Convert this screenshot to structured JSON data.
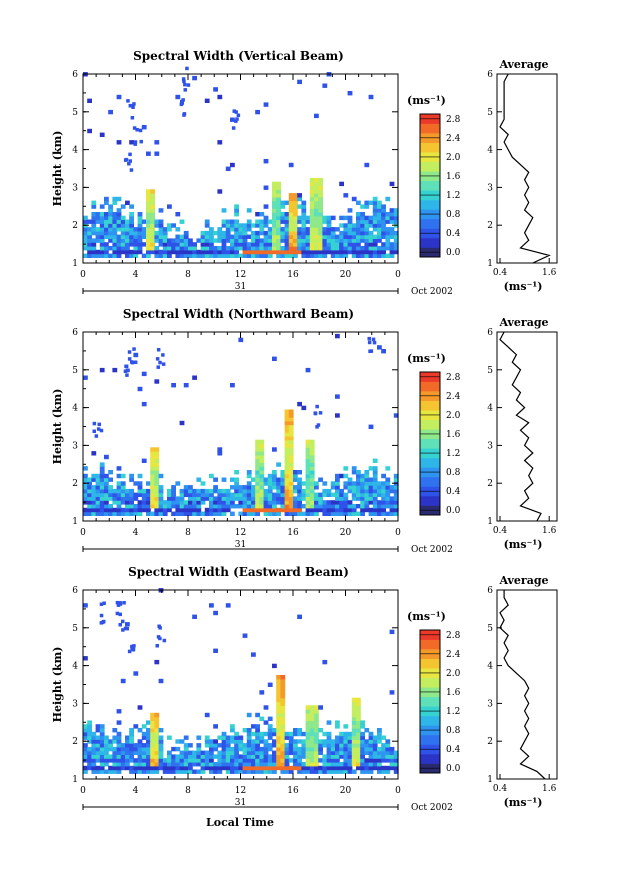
{
  "figure": {
    "date_label": "Oct 2002",
    "day_label": "31",
    "xlabel": "Local Time"
  },
  "colorbar": {
    "unit": "(ms⁻¹)",
    "ticks": [
      "0.0",
      "0.4",
      "0.8",
      "1.2",
      "1.6",
      "2.0",
      "2.4",
      "2.8"
    ],
    "colors": [
      "#2a2a6e",
      "#2c34c8",
      "#2f52e8",
      "#2f72f0",
      "#2e94f0",
      "#2fb6e8",
      "#36d2d2",
      "#5ee0b8",
      "#8fe88a",
      "#c2ee60",
      "#e8e640",
      "#f4c530",
      "#f49a2a",
      "#f26a28",
      "#ec3a2a"
    ]
  },
  "chart_data": [
    {
      "type": "heatmap",
      "title": "Spectral Width (Vertical Beam)",
      "xlabel": "",
      "ylabel": "Height (km)",
      "x_ticks": [
        "0",
        "4",
        "8",
        "12",
        "16",
        "20",
        "0"
      ],
      "y_ticks": [
        "1",
        "2",
        "3",
        "4",
        "5",
        "6"
      ],
      "xlim": [
        0,
        24
      ],
      "ylim": [
        1,
        6
      ],
      "value_range": [
        0,
        3.0
      ],
      "layer_top_km": 2.5,
      "streaks": [
        {
          "x": 5.0,
          "top": 2.9,
          "v": 2.2
        },
        {
          "x": 15.8,
          "top": 2.8,
          "v": 2.6
        },
        {
          "x": 17.6,
          "top": 3.2,
          "v": 2.1
        },
        {
          "x": 14.6,
          "top": 3.1,
          "v": 1.9
        }
      ],
      "average_profile": {
        "title": "Average",
        "xlabel": "(ms⁻¹)",
        "x_ticks": [
          "0.4",
          "1.6"
        ],
        "xlim": [
          0.4,
          1.6
        ],
        "heights": [
          1.0,
          1.2,
          1.4,
          1.6,
          1.8,
          2.0,
          2.2,
          2.4,
          2.6,
          2.8,
          3.0,
          3.2,
          3.4,
          3.6,
          3.8,
          4.0,
          4.2,
          4.4,
          4.6,
          4.8,
          5.0,
          5.2,
          5.4,
          5.6,
          5.8,
          6.0
        ],
        "values": [
          1.2,
          1.6,
          0.9,
          1.1,
          1.0,
          1.1,
          1.2,
          1.0,
          1.1,
          1.0,
          1.1,
          1.0,
          1.1,
          0.9,
          0.7,
          0.6,
          0.5,
          0.6,
          0.4,
          0.5,
          0.5,
          0.5,
          0.5,
          0.5,
          0.5,
          0.6
        ]
      }
    },
    {
      "type": "heatmap",
      "title": "Spectral Width (Northward Beam)",
      "xlabel": "",
      "ylabel": "Height (km)",
      "x_ticks": [
        "0",
        "4",
        "8",
        "12",
        "16",
        "20",
        "0"
      ],
      "y_ticks": [
        "1",
        "2",
        "3",
        "4",
        "5",
        "6"
      ],
      "xlim": [
        0,
        24
      ],
      "ylim": [
        1,
        6
      ],
      "value_range": [
        0,
        3.0
      ],
      "layer_top_km": 2.3,
      "streaks": [
        {
          "x": 5.3,
          "top": 2.9,
          "v": 2.3
        },
        {
          "x": 15.6,
          "top": 3.9,
          "v": 2.5
        },
        {
          "x": 17.0,
          "top": 3.1,
          "v": 1.9
        },
        {
          "x": 13.2,
          "top": 3.1,
          "v": 2.0
        }
      ],
      "average_profile": {
        "title": "Average",
        "xlabel": "(ms⁻¹)",
        "x_ticks": [
          "0.4",
          "1.6"
        ],
        "xlim": [
          0.4,
          1.6
        ],
        "heights": [
          1.0,
          1.2,
          1.4,
          1.6,
          1.8,
          2.0,
          2.2,
          2.4,
          2.6,
          2.8,
          3.0,
          3.2,
          3.4,
          3.6,
          3.8,
          4.0,
          4.2,
          4.4,
          4.6,
          4.8,
          5.0,
          5.2,
          5.4,
          5.6,
          5.8,
          6.0
        ],
        "values": [
          1.3,
          1.4,
          0.9,
          1.1,
          1.0,
          1.2,
          1.1,
          1.2,
          1.0,
          1.2,
          1.0,
          1.1,
          0.9,
          1.1,
          0.8,
          1.0,
          0.8,
          0.9,
          0.7,
          0.8,
          0.9,
          0.7,
          0.8,
          0.6,
          0.4,
          0.5
        ]
      }
    },
    {
      "type": "heatmap",
      "title": "Spectral Width (Eastward Beam)",
      "xlabel": "Local Time",
      "ylabel": "Height (km)",
      "x_ticks": [
        "0",
        "4",
        "8",
        "12",
        "16",
        "20",
        "0"
      ],
      "y_ticks": [
        "1",
        "2",
        "3",
        "4",
        "5",
        "6"
      ],
      "xlim": [
        0,
        24
      ],
      "ylim": [
        1,
        6
      ],
      "value_range": [
        0,
        3.0
      ],
      "layer_top_km": 2.4,
      "streaks": [
        {
          "x": 5.2,
          "top": 2.7,
          "v": 2.5
        },
        {
          "x": 14.8,
          "top": 3.7,
          "v": 2.6
        },
        {
          "x": 17.3,
          "top": 2.9,
          "v": 2.0
        },
        {
          "x": 20.6,
          "top": 3.1,
          "v": 2.1
        }
      ],
      "average_profile": {
        "title": "Average",
        "xlabel": "(ms⁻¹)",
        "x_ticks": [
          "0.4",
          "1.6"
        ],
        "xlim": [
          0.4,
          1.6
        ],
        "heights": [
          1.0,
          1.2,
          1.4,
          1.6,
          1.8,
          2.0,
          2.2,
          2.4,
          2.6,
          2.8,
          3.0,
          3.2,
          3.4,
          3.6,
          3.8,
          4.0,
          4.2,
          4.4,
          4.6,
          4.8,
          5.0,
          5.2,
          5.4,
          5.6,
          5.8,
          6.0
        ],
        "values": [
          1.5,
          1.3,
          0.9,
          1.1,
          0.9,
          1.0,
          1.1,
          1.0,
          1.1,
          1.0,
          1.1,
          1.0,
          1.1,
          1.0,
          0.8,
          0.6,
          0.5,
          0.6,
          0.5,
          0.6,
          0.4,
          0.5,
          0.4,
          0.6,
          0.5,
          0.5
        ]
      }
    }
  ]
}
